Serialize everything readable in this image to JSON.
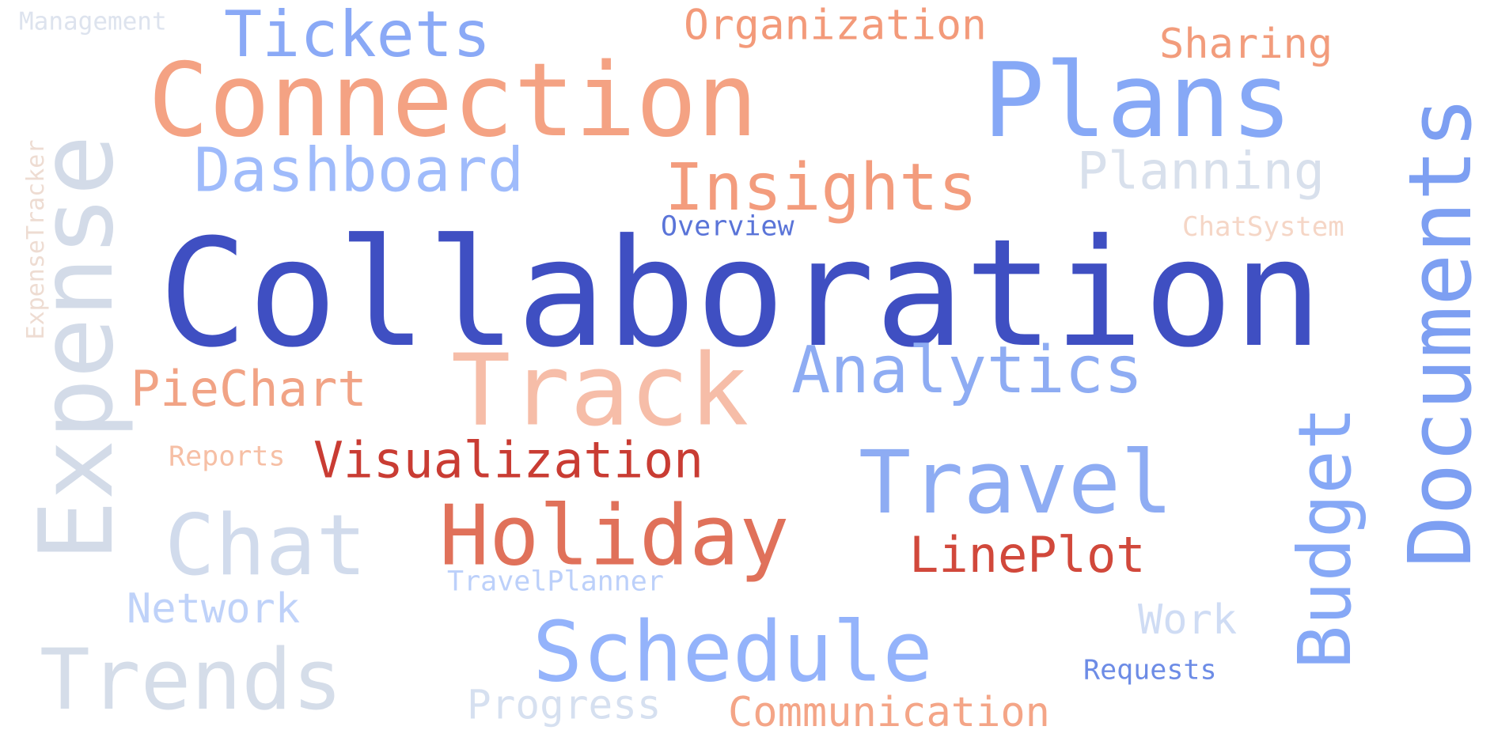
{
  "words": [
    {
      "text": "Collaboration",
      "color": "#3f4fc2"
    },
    {
      "text": "Connection",
      "color": "#f4a283"
    },
    {
      "text": "Plans",
      "color": "#86a8f6"
    },
    {
      "text": "Documents",
      "color": "#7d9ff2"
    },
    {
      "text": "Expense",
      "color": "#d3dbe8"
    },
    {
      "text": "Track",
      "color": "#f6bda8"
    },
    {
      "text": "Holiday",
      "color": "#e0715a"
    },
    {
      "text": "Travel",
      "color": "#8eacf3"
    },
    {
      "text": "Schedule",
      "color": "#94b3fb"
    },
    {
      "text": "Trends",
      "color": "#d5dde9"
    },
    {
      "text": "Chat",
      "color": "#d1dbec"
    },
    {
      "text": "Budget",
      "color": "#86a8f6"
    },
    {
      "text": "Tickets",
      "color": "#8aa9f6"
    },
    {
      "text": "Dashboard",
      "color": "#9fbbfb"
    },
    {
      "text": "Insights",
      "color": "#f39c7d"
    },
    {
      "text": "Analytics",
      "color": "#8eacf3"
    },
    {
      "text": "Visualization",
      "color": "#c93c33"
    },
    {
      "text": "LinePlot",
      "color": "#d1483b"
    },
    {
      "text": "Planning",
      "color": "#d8e0ec"
    },
    {
      "text": "PieChart",
      "color": "#f1a385"
    },
    {
      "text": "Organization",
      "color": "#f39a7a"
    },
    {
      "text": "Sharing",
      "color": "#f29c7c"
    },
    {
      "text": "Communication",
      "color": "#f4a587"
    },
    {
      "text": "Network",
      "color": "#bfd2f9"
    },
    {
      "text": "Work",
      "color": "#cfdcf4"
    },
    {
      "text": "Progress",
      "color": "#d6e0f0"
    },
    {
      "text": "Overview",
      "color": "#5a74d8"
    },
    {
      "text": "ChatSystem",
      "color": "#f5d6c6"
    },
    {
      "text": "Reports",
      "color": "#f6bfa5"
    },
    {
      "text": "TravelPlanner",
      "color": "#bcd0fa"
    },
    {
      "text": "Requests",
      "color": "#6d8ce6"
    },
    {
      "text": "Management",
      "color": "#dde3ee"
    },
    {
      "text": "ExpenseTracker",
      "color": "#eedcd2"
    }
  ]
}
